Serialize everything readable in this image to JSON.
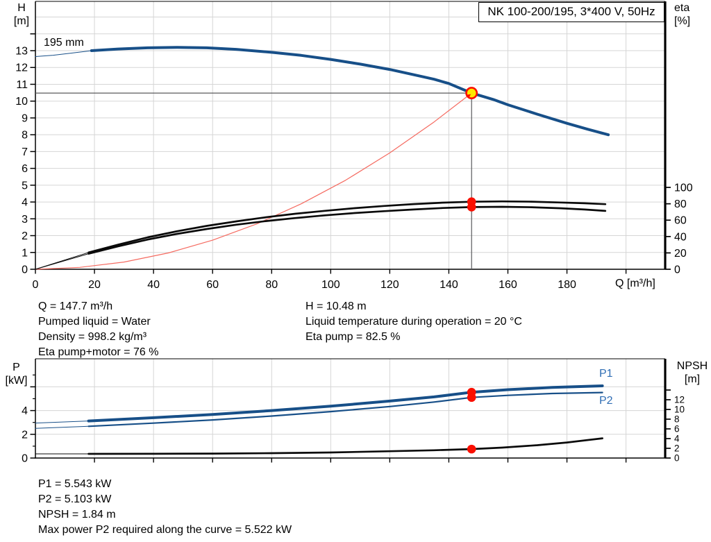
{
  "title_box": {
    "text": "NK 100-200/195, 3*400 V, 50Hz"
  },
  "labels": {
    "h": "H",
    "h_unit": "[m]",
    "eta": "eta",
    "eta_unit": "[%]",
    "q_axis": "Q [m³/h]",
    "p": "P",
    "p_unit": "[kW]",
    "npsh": "NPSH",
    "npsh_unit": "[m]",
    "p1": "P1",
    "p2": "P2",
    "head_size": "195 mm"
  },
  "operating_point": {
    "Q_m3h": 147.7,
    "H_m": 10.48,
    "eta_pump_pct": 82.5,
    "eta_pump_motor_pct": 76,
    "P1_kW": 5.543,
    "P2_kW": 5.103,
    "NPSH_m": 1.84,
    "max_P2_kW": 5.522,
    "pumped_liquid": "Water",
    "density": "998.2 kg/m³",
    "liquid_temp": "20 °C"
  },
  "info_panels": {
    "top_left": [
      "Q = 147.7 m³/h",
      "Pumped liquid = Water",
      "Density = 998.2 kg/m³",
      "Eta pump+motor = 76 %"
    ],
    "top_right": [
      "H = 10.48 m",
      "Liquid temperature during operation = 20 °C",
      "Eta pump = 82.5 %"
    ],
    "bottom": [
      "P1 = 5.543 kW",
      "P2 = 5.103 kW",
      "NPSH = 1.84 m",
      "Max power P2 required along the curve = 5.522 kW"
    ]
  },
  "colors": {
    "curve_blue": "#174f88",
    "curve_black": "#0a0a0a",
    "system_red": "#f56a60",
    "dot_red": "#fa0f00",
    "op_yellow": "#ffe900",
    "grid": "#d5d5d5",
    "crosshair": "#58595b",
    "label_blue": "#2e6db4",
    "axis_black": "#000000"
  },
  "chart_data": [
    {
      "type": "line",
      "name": "head_efficiency_chart",
      "title": "NK 100-200/195, 3*400 V, 50Hz",
      "x_axis": {
        "label": "Q [m³/h]",
        "ticks": [
          0,
          20,
          40,
          60,
          80,
          100,
          120,
          140,
          160,
          180
        ],
        "unlabeled_ticks": [
          200
        ],
        "gridlines": [
          20,
          40,
          60,
          80,
          100,
          120,
          140,
          160,
          180,
          200
        ],
        "range": [
          0,
          213
        ]
      },
      "y_axis_left": {
        "label": "H [m]",
        "ticks": [
          0,
          1,
          2,
          3,
          4,
          5,
          6,
          7,
          8,
          9,
          10,
          11,
          12,
          13
        ],
        "unlabeled_ticks": [
          14
        ],
        "gridlines": [
          1,
          2,
          3,
          4,
          5,
          6,
          7,
          8,
          9,
          10,
          11,
          12,
          13,
          14,
          15
        ],
        "range": [
          0,
          15.9
        ]
      },
      "y_axis_right": {
        "label": "eta [%]",
        "ticks": [
          0,
          20,
          40,
          60,
          80,
          100
        ],
        "range": [
          0,
          100
        ]
      },
      "crosshair": {
        "Q": 147.7,
        "H": 10.48
      },
      "series": [
        {
          "name": "system_curve",
          "axis": "left",
          "color_key": "system_red",
          "weight": "hair",
          "points": [
            [
              0,
              0
            ],
            [
              15,
              0.11
            ],
            [
              30,
              0.43
            ],
            [
              45,
              0.97
            ],
            [
              60,
              1.73
            ],
            [
              75,
              2.7
            ],
            [
              90,
              3.89
            ],
            [
              105,
              5.29
            ],
            [
              120,
              6.92
            ],
            [
              135,
              8.76
            ],
            [
              147.7,
              10.48
            ]
          ]
        },
        {
          "name": "eta_pump",
          "axis": "right",
          "color_key": "curve_black",
          "weight": "medium",
          "lead": [
            [
              0,
              0
            ],
            [
              18,
              20.5
            ]
          ],
          "points": [
            [
              18,
              20.5
            ],
            [
              28,
              30
            ],
            [
              38,
              39
            ],
            [
              48,
              46.5
            ],
            [
              58,
              53
            ],
            [
              68,
              58.5
            ],
            [
              78,
              63.5
            ],
            [
              88,
              67.8
            ],
            [
              98,
              71.4
            ],
            [
              108,
              74.6
            ],
            [
              118,
              77.3
            ],
            [
              128,
              79.6
            ],
            [
              138,
              81.4
            ],
            [
              147.7,
              82.5
            ],
            [
              158,
              82.9
            ],
            [
              168,
              82.6
            ],
            [
              178,
              81.6
            ],
            [
              186,
              80.6
            ],
            [
              193,
              79.5
            ]
          ]
        },
        {
          "name": "eta_pump_motor",
          "axis": "right",
          "color_key": "curve_black",
          "weight": "medium",
          "lead": [
            [
              0,
              0
            ],
            [
              18,
              19
            ]
          ],
          "points": [
            [
              18,
              19
            ],
            [
              28,
              28
            ],
            [
              38,
              36.3
            ],
            [
              48,
              43.2
            ],
            [
              58,
              49.2
            ],
            [
              68,
              54.4
            ],
            [
              78,
              58.8
            ],
            [
              88,
              62.6
            ],
            [
              98,
              65.9
            ],
            [
              108,
              68.7
            ],
            [
              118,
              71
            ],
            [
              128,
              73
            ],
            [
              138,
              74.9
            ],
            [
              147.7,
              76
            ],
            [
              158,
              76.3
            ],
            [
              168,
              75.8
            ],
            [
              178,
              74.5
            ],
            [
              186,
              73
            ],
            [
              193,
              71.3
            ]
          ]
        },
        {
          "name": "head_curve",
          "label": "195 mm",
          "axis": "left",
          "color_key": "curve_blue",
          "weight": "thick",
          "lead": [
            [
              0,
              12.65
            ],
            [
              6,
              12.73
            ],
            [
              12,
              12.85
            ],
            [
              19,
              13.0
            ]
          ],
          "points": [
            [
              19,
              13.0
            ],
            [
              28,
              13.1
            ],
            [
              38,
              13.17
            ],
            [
              48,
              13.2
            ],
            [
              58,
              13.17
            ],
            [
              68,
              13.08
            ],
            [
              80,
              12.9
            ],
            [
              90,
              12.72
            ],
            [
              100,
              12.48
            ],
            [
              110,
              12.2
            ],
            [
              120,
              11.88
            ],
            [
              130,
              11.5
            ],
            [
              135,
              11.3
            ],
            [
              140,
              11.05
            ],
            [
              147.7,
              10.48
            ],
            [
              155,
              10.1
            ],
            [
              160,
              9.78
            ],
            [
              170,
              9.22
            ],
            [
              180,
              8.68
            ],
            [
              187,
              8.33
            ],
            [
              194,
              8.0
            ]
          ]
        }
      ],
      "markers": [
        {
          "name": "duty_point",
          "Q": 147.7,
          "value": 10.48,
          "axis": "left",
          "style": "ring"
        },
        {
          "name": "eta_pump_point",
          "Q": 147.7,
          "value": 82.5,
          "axis": "right",
          "style": "dot"
        },
        {
          "name": "eta_pump_motor_point",
          "Q": 147.7,
          "value": 76,
          "axis": "right",
          "style": "dot"
        }
      ]
    },
    {
      "type": "line",
      "name": "power_npsh_chart",
      "x_axis": {
        "label": "",
        "ticks": [],
        "unlabeled_ticks": [
          20,
          40,
          60,
          80,
          100,
          120,
          140,
          160,
          180,
          200
        ],
        "gridlines": [
          20,
          40,
          60,
          80,
          100,
          120,
          140,
          160,
          180,
          200
        ],
        "range": [
          0,
          213
        ]
      },
      "y_axis_left": {
        "label": "P [kW]",
        "ticks": [
          0,
          2,
          4
        ],
        "unlabeled_ticks": [
          6
        ],
        "minor_ticks": [
          1,
          3,
          5,
          7
        ],
        "gridlines": [
          2,
          4,
          6
        ],
        "range": [
          0,
          8.4
        ]
      },
      "y_axis_right": {
        "label": "NPSH [m]",
        "ticks": [
          0,
          2,
          4,
          6,
          8,
          10,
          12
        ],
        "unlabeled_ticks": [
          14
        ],
        "range": [
          0,
          20.4
        ]
      },
      "series": [
        {
          "name": "NPSH",
          "axis": "right",
          "color_key": "curve_black",
          "weight": "medium",
          "lead": [
            [
              0,
              0.85
            ],
            [
              18,
              0.85
            ]
          ],
          "points": [
            [
              18,
              0.85
            ],
            [
              40,
              0.87
            ],
            [
              60,
              0.92
            ],
            [
              80,
              1.0
            ],
            [
              100,
              1.15
            ],
            [
              120,
              1.4
            ],
            [
              135,
              1.6
            ],
            [
              147.7,
              1.84
            ],
            [
              158,
              2.15
            ],
            [
              170,
              2.65
            ],
            [
              180,
              3.2
            ],
            [
              192,
              4.05
            ]
          ]
        },
        {
          "name": "P2",
          "label": "P2",
          "axis": "left",
          "color_key": "curve_blue",
          "weight": "slim",
          "lead": [
            [
              0,
              2.5
            ],
            [
              18,
              2.67
            ]
          ],
          "points": [
            [
              18,
              2.67
            ],
            [
              40,
              2.94
            ],
            [
              60,
              3.21
            ],
            [
              80,
              3.54
            ],
            [
              100,
              3.91
            ],
            [
              120,
              4.34
            ],
            [
              135,
              4.72
            ],
            [
              147.7,
              5.103
            ],
            [
              160,
              5.28
            ],
            [
              175,
              5.44
            ],
            [
              192,
              5.52
            ]
          ]
        },
        {
          "name": "P1",
          "label": "P1",
          "axis": "left",
          "color_key": "curve_blue",
          "weight": "thick",
          "lead": [
            [
              0,
              2.95
            ],
            [
              18,
              3.12
            ]
          ],
          "points": [
            [
              18,
              3.12
            ],
            [
              40,
              3.4
            ],
            [
              60,
              3.67
            ],
            [
              80,
              4.0
            ],
            [
              100,
              4.37
            ],
            [
              120,
              4.8
            ],
            [
              135,
              5.15
            ],
            [
              147.7,
              5.543
            ],
            [
              160,
              5.76
            ],
            [
              175,
              5.95
            ],
            [
              192,
              6.08
            ]
          ]
        }
      ],
      "markers": [
        {
          "name": "p1_point",
          "Q": 147.7,
          "value": 5.543,
          "axis": "left",
          "style": "dot"
        },
        {
          "name": "p2_point",
          "Q": 147.7,
          "value": 5.103,
          "axis": "left",
          "style": "dot"
        },
        {
          "name": "npsh_point",
          "Q": 147.7,
          "value": 1.84,
          "axis": "right",
          "style": "dot"
        }
      ]
    }
  ]
}
